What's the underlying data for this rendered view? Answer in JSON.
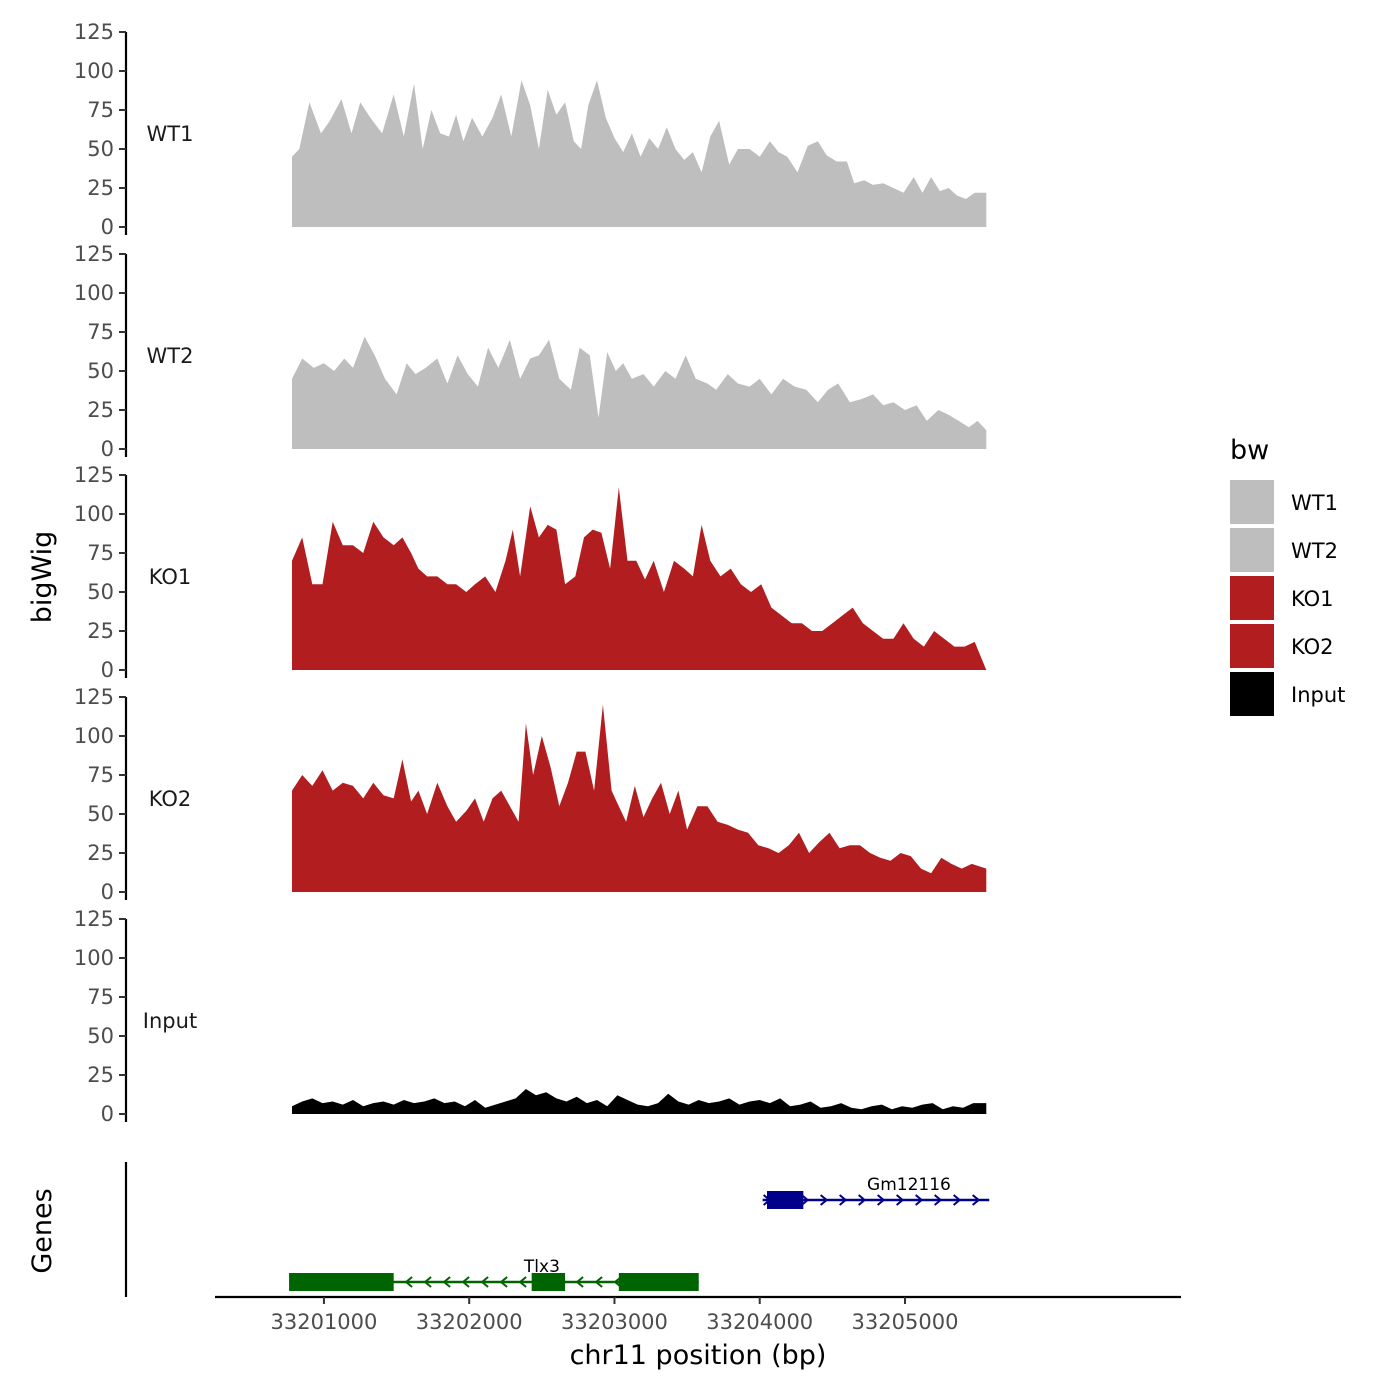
{
  "chart_data": {
    "type": "area",
    "chromosome": "chr11",
    "xlabel": "chr11 position (bp)",
    "ylabel": "bigWig",
    "genes_label": "Genes",
    "xlim": [
      33200250,
      33206900
    ],
    "region": [
      33200780,
      33205560
    ],
    "xticks": [
      33201000,
      33202000,
      33203000,
      33204000,
      33205000
    ],
    "xtick_labels": [
      "33201000",
      "33202000",
      "33203000",
      "33204000",
      "33205000"
    ],
    "ylim": [
      0,
      125
    ],
    "yticks": [
      0,
      25,
      50,
      75,
      100,
      125
    ],
    "ytick_labels": [
      "0",
      "25",
      "50",
      "75",
      "100",
      "125"
    ],
    "legend": {
      "title": "bw",
      "entries": [
        {
          "label": "WT1",
          "color": "#bebebe"
        },
        {
          "label": "WT2",
          "color": "#bebebe"
        },
        {
          "label": "KO1",
          "color": "#b21e20"
        },
        {
          "label": "KO2",
          "color": "#b21e20"
        },
        {
          "label": "Input",
          "color": "#000000"
        }
      ]
    },
    "series": [
      {
        "name": "WT1",
        "color": "#bebebe",
        "x": [
          33200780,
          33200830,
          33200900,
          33200980,
          33201040,
          33201120,
          33201190,
          33201250,
          33201320,
          33201400,
          33201480,
          33201550,
          33201620,
          33201680,
          33201740,
          33201800,
          33201860,
          33201910,
          33201960,
          33202020,
          33202090,
          33202160,
          33202220,
          33202290,
          33202360,
          33202420,
          33202480,
          33202540,
          33202600,
          33202660,
          33202720,
          33202770,
          33202820,
          33202880,
          33202940,
          33203000,
          33203060,
          33203120,
          33203180,
          33203240,
          33203300,
          33203360,
          33203420,
          33203480,
          33203540,
          33203600,
          33203660,
          33203720,
          33203790,
          33203850,
          33203930,
          33204000,
          33204070,
          33204130,
          33204190,
          33204260,
          33204330,
          33204400,
          33204460,
          33204530,
          33204600,
          33204650,
          33204720,
          33204780,
          33204850,
          33204920,
          33204990,
          33205060,
          33205120,
          33205180,
          33205240,
          33205300,
          33205360,
          33205420,
          33205480,
          33205560
        ],
        "values": [
          45,
          50,
          80,
          60,
          68,
          82,
          60,
          80,
          70,
          60,
          85,
          58,
          92,
          50,
          75,
          60,
          58,
          72,
          55,
          70,
          58,
          70,
          85,
          58,
          94,
          78,
          50,
          88,
          72,
          80,
          55,
          50,
          78,
          94,
          70,
          57,
          48,
          60,
          45,
          57,
          50,
          64,
          50,
          43,
          48,
          35,
          58,
          68,
          40,
          50,
          50,
          45,
          55,
          48,
          45,
          35,
          52,
          55,
          46,
          42,
          42,
          28,
          30,
          27,
          28,
          25,
          22,
          32,
          22,
          32,
          23,
          25,
          20,
          18,
          22,
          22
        ]
      },
      {
        "name": "WT2",
        "color": "#bebebe",
        "x": [
          33200780,
          33200850,
          33200930,
          33201000,
          33201070,
          33201140,
          33201200,
          33201280,
          33201350,
          33201420,
          33201500,
          33201570,
          33201630,
          33201700,
          33201780,
          33201850,
          33201920,
          33201990,
          33202060,
          33202130,
          33202200,
          33202280,
          33202350,
          33202420,
          33202480,
          33202550,
          33202620,
          33202700,
          33202760,
          33202830,
          33202890,
          33202950,
          33203010,
          33203060,
          33203120,
          33203200,
          33203270,
          33203350,
          33203420,
          33203490,
          33203560,
          33203640,
          33203700,
          33203780,
          33203850,
          33203930,
          33204000,
          33204080,
          33204160,
          33204240,
          33204320,
          33204400,
          33204470,
          33204540,
          33204620,
          33204700,
          33204780,
          33204850,
          33204920,
          33205000,
          33205080,
          33205150,
          33205230,
          33205300,
          33205370,
          33205440,
          33205500,
          33205560
        ],
        "values": [
          45,
          58,
          52,
          55,
          50,
          58,
          52,
          72,
          60,
          45,
          35,
          55,
          48,
          52,
          58,
          42,
          60,
          48,
          40,
          65,
          52,
          70,
          45,
          58,
          60,
          70,
          45,
          38,
          65,
          60,
          20,
          62,
          50,
          55,
          45,
          48,
          40,
          50,
          45,
          60,
          45,
          42,
          38,
          48,
          42,
          40,
          45,
          35,
          45,
          40,
          38,
          30,
          38,
          42,
          30,
          32,
          35,
          28,
          30,
          25,
          28,
          18,
          25,
          22,
          18,
          14,
          18,
          12
        ]
      },
      {
        "name": "KO1",
        "color": "#b21e20",
        "x": [
          33200780,
          33200850,
          33200920,
          33200990,
          33201060,
          33201130,
          33201200,
          33201270,
          33201340,
          33201410,
          33201480,
          33201540,
          33201600,
          33201650,
          33201710,
          33201780,
          33201850,
          33201910,
          33201980,
          33202040,
          33202110,
          33202180,
          33202250,
          33202300,
          33202350,
          33202420,
          33202480,
          33202540,
          33202600,
          33202660,
          33202730,
          33202790,
          33202850,
          33202910,
          33202970,
          33203030,
          33203090,
          33203150,
          33203210,
          33203270,
          33203340,
          33203410,
          33203480,
          33203540,
          33203600,
          33203660,
          33203730,
          33203800,
          33203870,
          33203940,
          33204010,
          33204080,
          33204150,
          33204220,
          33204290,
          33204360,
          33204430,
          33204500,
          33204570,
          33204640,
          33204710,
          33204780,
          33204850,
          33204920,
          33204990,
          33205060,
          33205130,
          33205200,
          33205270,
          33205340,
          33205410,
          33205480,
          33205560
        ],
        "values": [
          70,
          85,
          55,
          55,
          95,
          80,
          80,
          75,
          95,
          85,
          80,
          85,
          75,
          65,
          60,
          60,
          55,
          55,
          50,
          55,
          60,
          50,
          70,
          90,
          60,
          105,
          85,
          93,
          90,
          55,
          60,
          85,
          90,
          88,
          65,
          117,
          70,
          70,
          58,
          70,
          50,
          70,
          65,
          60,
          93,
          70,
          60,
          65,
          55,
          50,
          55,
          40,
          35,
          30,
          30,
          25,
          25,
          30,
          35,
          40,
          30,
          25,
          20,
          20,
          30,
          20,
          15,
          25,
          20,
          15,
          15,
          18,
          0
        ]
      },
      {
        "name": "KO2",
        "color": "#b21e20",
        "x": [
          33200780,
          33200850,
          33200920,
          33200990,
          33201060,
          33201130,
          33201200,
          33201270,
          33201340,
          33201410,
          33201480,
          33201540,
          33201600,
          33201650,
          33201710,
          33201780,
          33201850,
          33201910,
          33201980,
          33202040,
          33202100,
          33202160,
          33202220,
          33202280,
          33202340,
          33202390,
          33202440,
          33202500,
          33202560,
          33202620,
          33202680,
          33202740,
          33202800,
          33202860,
          33202920,
          33202980,
          33203030,
          33203080,
          33203140,
          33203200,
          33203260,
          33203320,
          33203380,
          33203440,
          33203500,
          33203570,
          33203640,
          33203710,
          33203780,
          33203850,
          33203920,
          33203990,
          33204060,
          33204130,
          33204200,
          33204270,
          33204340,
          33204410,
          33204480,
          33204550,
          33204620,
          33204690,
          33204760,
          33204830,
          33204900,
          33204970,
          33205040,
          33205110,
          33205180,
          33205250,
          33205320,
          33205390,
          33205460,
          33205560
        ],
        "values": [
          65,
          75,
          68,
          78,
          65,
          70,
          68,
          60,
          70,
          62,
          60,
          85,
          58,
          65,
          50,
          70,
          55,
          45,
          52,
          60,
          45,
          60,
          65,
          55,
          45,
          108,
          75,
          100,
          80,
          55,
          70,
          90,
          90,
          65,
          120,
          65,
          55,
          45,
          68,
          48,
          60,
          70,
          50,
          65,
          40,
          55,
          55,
          45,
          43,
          40,
          38,
          30,
          28,
          25,
          30,
          38,
          25,
          32,
          38,
          28,
          30,
          30,
          25,
          22,
          20,
          25,
          23,
          15,
          12,
          22,
          18,
          15,
          18,
          15
        ]
      },
      {
        "name": "Input",
        "color": "#000000",
        "x": [
          33200780,
          33200850,
          33200920,
          33200990,
          33201060,
          33201130,
          33201200,
          33201270,
          33201340,
          33201410,
          33201480,
          33201550,
          33201620,
          33201690,
          33201760,
          33201830,
          33201900,
          33201970,
          33202040,
          33202110,
          33202180,
          33202250,
          33202320,
          33202390,
          33202460,
          33202530,
          33202600,
          33202670,
          33202740,
          33202810,
          33202880,
          33202950,
          33203020,
          33203090,
          33203160,
          33203230,
          33203300,
          33203370,
          33203440,
          33203510,
          33203580,
          33203650,
          33203720,
          33203790,
          33203860,
          33203930,
          33204000,
          33204070,
          33204140,
          33204210,
          33204280,
          33204350,
          33204420,
          33204490,
          33204560,
          33204630,
          33204700,
          33204770,
          33204840,
          33204910,
          33204980,
          33205050,
          33205120,
          33205190,
          33205260,
          33205330,
          33205400,
          33205470,
          33205560
        ],
        "values": [
          5,
          8,
          10,
          7,
          8,
          6,
          9,
          5,
          7,
          8,
          6,
          9,
          7,
          8,
          10,
          7,
          8,
          5,
          9,
          4,
          6,
          8,
          10,
          16,
          12,
          14,
          10,
          8,
          11,
          7,
          9,
          5,
          12,
          9,
          6,
          5,
          7,
          13,
          8,
          6,
          9,
          7,
          8,
          10,
          6,
          8,
          9,
          7,
          10,
          5,
          6,
          8,
          4,
          5,
          7,
          4,
          3,
          5,
          6,
          3,
          5,
          4,
          6,
          7,
          3,
          5,
          4,
          7,
          7
        ]
      }
    ],
    "genes": [
      {
        "name": "Tlx3",
        "strand": "-",
        "color": "#006400",
        "start": 33200760,
        "end": 33203580,
        "exons": [
          [
            33200760,
            33201480
          ],
          [
            33202430,
            33202660
          ],
          [
            33203030,
            33203580
          ]
        ]
      },
      {
        "name": "Gm12116",
        "strand": "+",
        "color": "#00008b",
        "start": 33204020,
        "end": 33205580,
        "exons": [
          [
            33204050,
            33204300
          ]
        ]
      }
    ]
  }
}
